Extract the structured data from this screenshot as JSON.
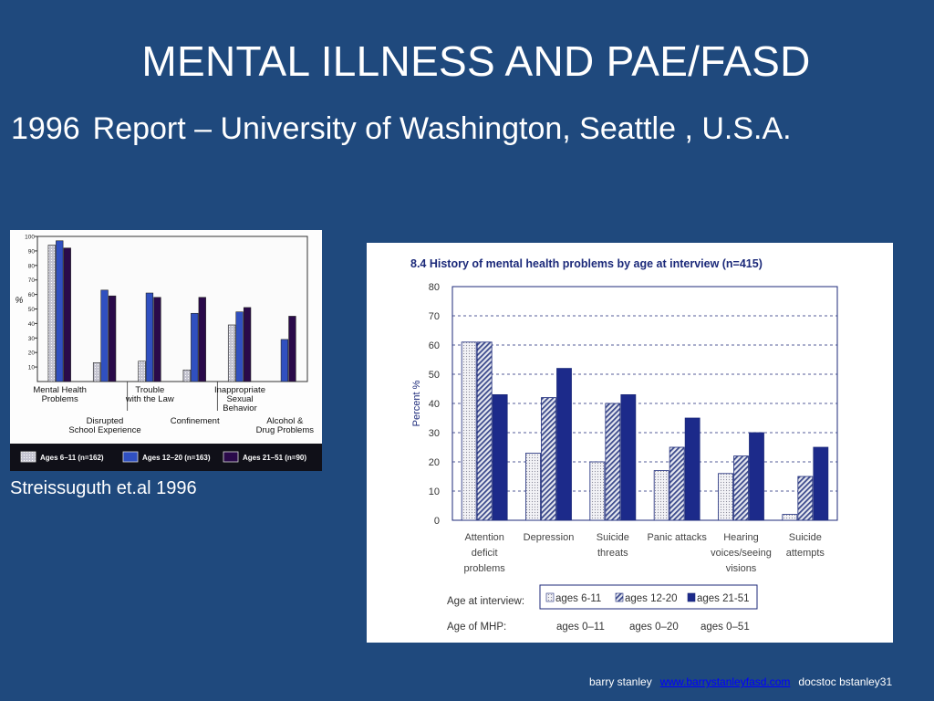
{
  "slide": {
    "title": "MENTAL ILLNESS AND PAE/FASD",
    "subtitle_year": "1996",
    "subtitle_rest": "Report – University of Washington, Seattle , U.S.A.",
    "caption": "Streissuguth et.al  1996",
    "footer": {
      "author": "barry stanley",
      "link": "www.barrystanleyfasd.com",
      "source": "docstoc bstanley31"
    }
  },
  "colors": {
    "background": "#1f497d",
    "series_light": "#c8c8d4",
    "series_mid": "#3050c0",
    "series_dark": "#2a0a4a",
    "chart2_dark": "#1c2a8a"
  },
  "chart_data": [
    {
      "type": "bar",
      "title": "",
      "ylabel": "%",
      "ylim": [
        0,
        100
      ],
      "yticks": [
        10,
        20,
        30,
        40,
        50,
        60,
        70,
        80,
        90,
        100
      ],
      "categories_top": [
        "Mental Health\nProblems",
        "Trouble\nwith the Law",
        "Inappropriate\nSexual\nBehavior"
      ],
      "categories_bottom": [
        "Disrupted\nSchool Experience",
        "Confinement",
        "Alcohol &\nDrug Problems"
      ],
      "categories": [
        "Mental Health Problems",
        "Disrupted School Experience",
        "Trouble with the Law",
        "Confinement",
        "Inappropriate Sexual Behavior",
        "Alcohol & Drug Problems"
      ],
      "series": [
        {
          "name": "Ages 6–11 (n=162)",
          "values": [
            94,
            13,
            14,
            8,
            39,
            0
          ]
        },
        {
          "name": "Ages 12–20 (n=163)",
          "values": [
            97,
            63,
            61,
            47,
            48,
            29
          ]
        },
        {
          "name": "Ages 21–51 (n=90)",
          "values": [
            92,
            59,
            58,
            58,
            51,
            45
          ]
        }
      ],
      "legend_position": "bottom"
    },
    {
      "type": "bar",
      "title": "8.4 History of mental health problems by age at interview (n=415)",
      "ylabel": "Percent  %",
      "ylim": [
        0,
        80
      ],
      "yticks": [
        0,
        10,
        20,
        30,
        40,
        50,
        60,
        70,
        80
      ],
      "grid": true,
      "categories": [
        "Attention\ndeficit\nproblems",
        "Depression",
        "Suicide\nthreats",
        "Panic attacks",
        "Hearing\nvoices/seeing\nvisions",
        "Suicide\nattempts"
      ],
      "series": [
        {
          "name": "ages  6-11",
          "values": [
            61,
            23,
            20,
            17,
            16,
            2
          ]
        },
        {
          "name": "ages  12-20",
          "values": [
            61,
            42,
            40,
            25,
            22,
            15
          ]
        },
        {
          "name": "ages  21-51",
          "values": [
            43,
            52,
            43,
            35,
            30,
            25
          ]
        }
      ],
      "legend_label": "Age at interview:",
      "mhp_label": "Age of MHP:",
      "mhp_values": [
        "ages 0–11",
        "ages 0–20",
        "ages 0–51"
      ],
      "legend_position": "bottom"
    }
  ]
}
